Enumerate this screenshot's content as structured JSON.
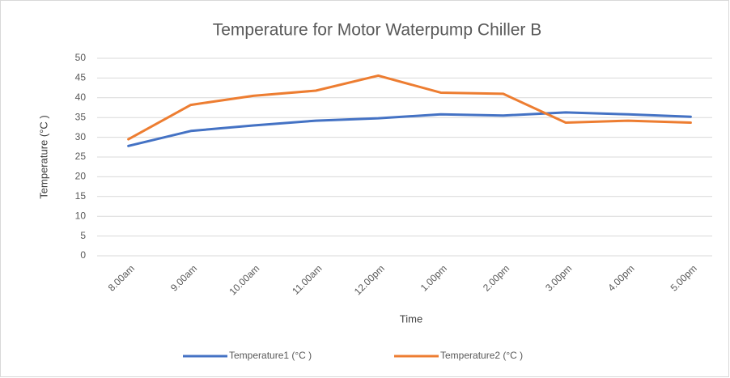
{
  "chart_data": {
    "type": "line",
    "title": "Temperature for Motor Waterpump Chiller B",
    "x_label": "Time",
    "y_label": "Temperature (°C )",
    "categories": [
      "8.00am",
      "9.00am",
      "10.00am",
      "11.00am",
      "12.00pm",
      "1.00pm",
      "2.00pm",
      "3.00pm",
      "4.00pm",
      "5.00pm"
    ],
    "series": [
      {
        "name": "Temperature1 (°C )",
        "color": "#4472c4",
        "values": [
          27.8,
          31.6,
          33,
          34.2,
          34.8,
          35.8,
          35.5,
          36.3,
          35.8,
          35.2
        ]
      },
      {
        "name": "Temperature2 (°C )",
        "color": "#ed7d31",
        "values": [
          29.5,
          38.2,
          40.5,
          41.8,
          45.6,
          41.3,
          41,
          33.7,
          34.2,
          33.7
        ]
      }
    ],
    "ylim": [
      0,
      50
    ],
    "yticks": [
      0,
      5,
      10,
      15,
      20,
      25,
      30,
      35,
      40,
      45,
      50
    ],
    "grid": true,
    "legend": "bottom"
  }
}
